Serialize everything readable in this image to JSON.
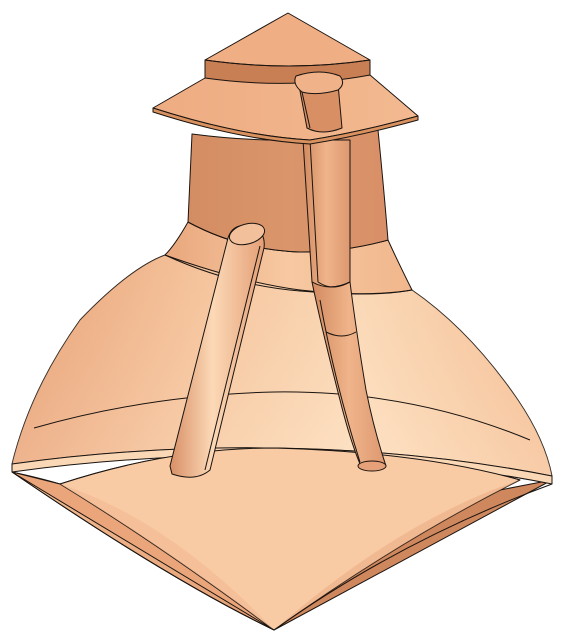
{
  "viewport": {
    "background": "#ffffff",
    "model_color": "#e8a67c",
    "edge_color": "#1a1410"
  },
  "model": {
    "parts": [
      "cap-top",
      "cap-brim",
      "neck",
      "shoulder",
      "body",
      "base-bottom",
      "left-rod",
      "right-tube",
      "cap-tab"
    ]
  }
}
